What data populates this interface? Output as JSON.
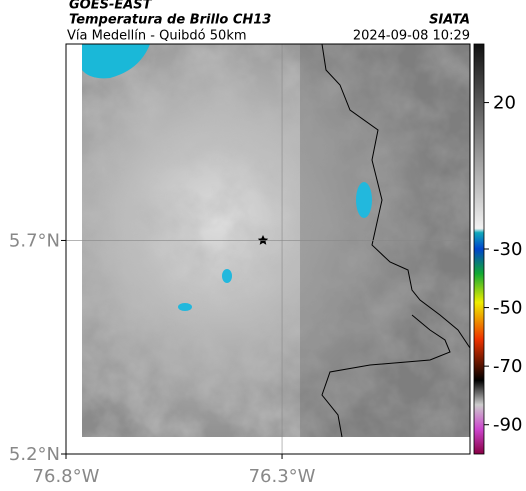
{
  "header": {
    "satellite": "GOES-EAST",
    "product": "Temperatura de Brillo CH13",
    "org": "SIATA",
    "region": "Vía Medellín - Quibdó 50km",
    "timestamp": "2024-09-08 10:29"
  },
  "map": {
    "lat_range": [
      5.2,
      6.16
    ],
    "lon_range": [
      -76.8,
      -75.865
    ],
    "lat_ticks": [
      {
        "value": 5.7,
        "label": "5.7°N"
      },
      {
        "value": 5.2,
        "label": "5.2°N"
      }
    ],
    "lon_ticks": [
      {
        "value": -76.8,
        "label": "76.8°W"
      },
      {
        "value": -76.3,
        "label": "76.3°W"
      }
    ]
  },
  "colorbar": {
    "range": [
      -100,
      40
    ],
    "ticks": [
      20,
      -30,
      -50,
      -70,
      -90
    ]
  }
}
